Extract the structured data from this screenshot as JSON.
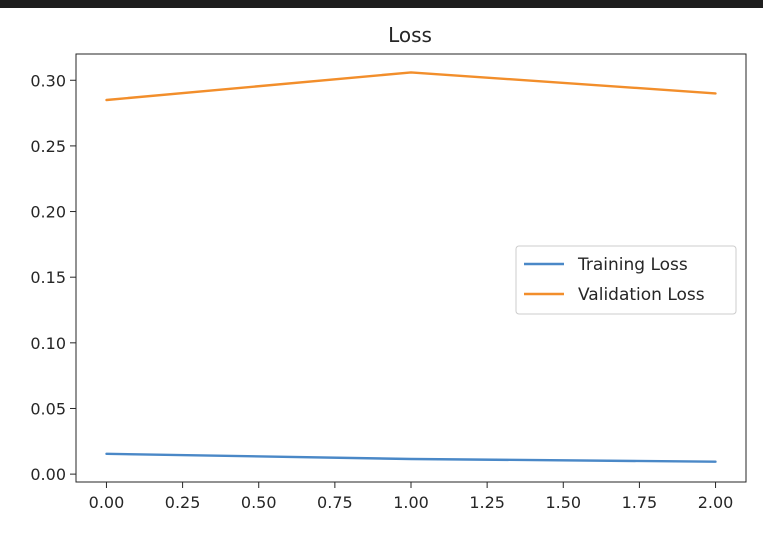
{
  "chart_data": {
    "type": "line",
    "title": "Loss",
    "xlabel": "",
    "ylabel": "",
    "x": [
      0,
      1,
      2
    ],
    "xlim": [
      -0.1,
      2.1
    ],
    "ylim": [
      -0.006,
      0.32
    ],
    "xticks": [
      0.0,
      0.25,
      0.5,
      0.75,
      1.0,
      1.25,
      1.5,
      1.75,
      2.0
    ],
    "xtick_labels": [
      "0.00",
      "0.25",
      "0.50",
      "0.75",
      "1.00",
      "1.25",
      "1.50",
      "1.75",
      "2.00"
    ],
    "yticks": [
      0.0,
      0.05,
      0.1,
      0.15,
      0.2,
      0.25,
      0.3
    ],
    "ytick_labels": [
      "0.00",
      "0.05",
      "0.10",
      "0.15",
      "0.20",
      "0.25",
      "0.30"
    ],
    "grid": false,
    "legend_position": "center-right",
    "series": [
      {
        "name": "Training Loss",
        "color": "#4a88c7",
        "values": [
          0.0155,
          0.0115,
          0.0095
        ]
      },
      {
        "name": "Validation Loss",
        "color": "#f28e2b",
        "values": [
          0.285,
          0.306,
          0.29
        ]
      }
    ]
  }
}
